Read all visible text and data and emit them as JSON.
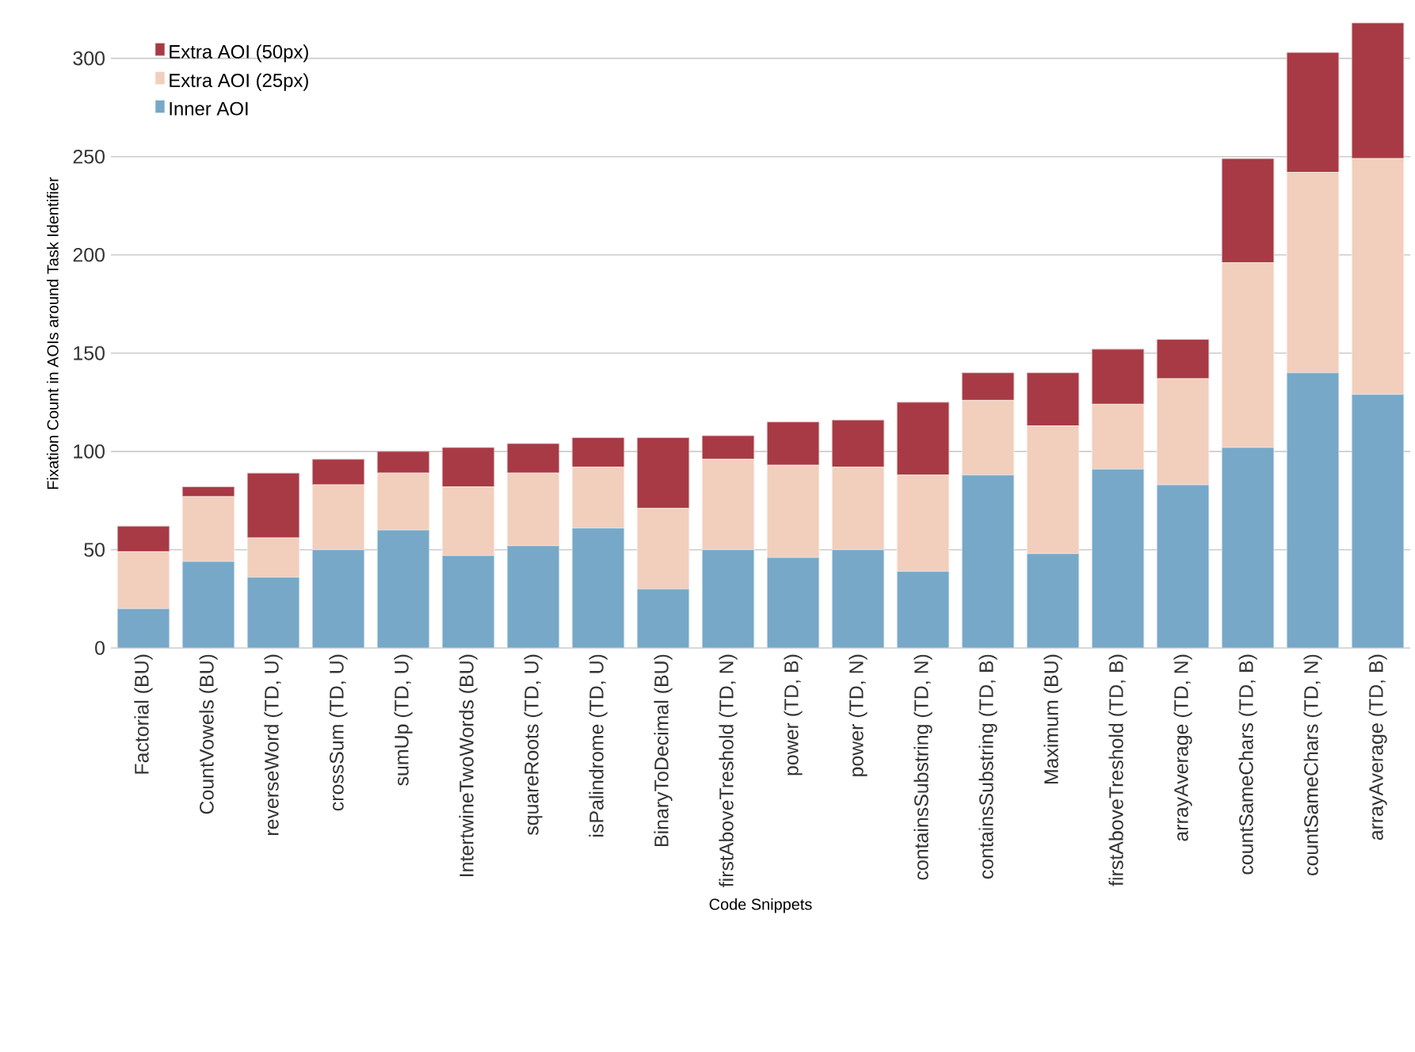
{
  "chart_data": {
    "type": "bar",
    "stacked": true,
    "xlabel": "Code Snippets",
    "ylabel": "Fixation Count in AOIs around Task Identifier",
    "categories": [
      "Factorial (BU)",
      "CountVowels (BU)",
      "reverseWord (TD, U)",
      "crossSum (TD, U)",
      "sumUp (TD, U)",
      "IntertwineTwoWords (BU)",
      "squareRoots (TD, U)",
      "isPalindrome (TD, U)",
      "BinaryToDecimal (BU)",
      "firstAboveTreshold (TD, N)",
      "power (TD, B)",
      "power (TD, N)",
      "containsSubstring (TD, N)",
      "containsSubstring (TD, B)",
      "Maximum (BU)",
      "firstAboveTreshold (TD, B)",
      "arrayAverage (TD, N)",
      "countSameChars (TD, B)",
      "countSameChars (TD, N)",
      "arrayAverage (TD, B)"
    ],
    "series": [
      {
        "name": "Inner AOI",
        "color": "#77a8c7",
        "values": [
          20,
          44,
          36,
          50,
          60,
          47,
          52,
          61,
          30,
          50,
          46,
          50,
          39,
          88,
          48,
          91,
          83,
          102,
          140,
          129
        ]
      },
      {
        "name": "Extra AOI (25px)",
        "color": "#f2cebc",
        "values": [
          29,
          33,
          20,
          33,
          29,
          35,
          37,
          31,
          41,
          46,
          47,
          42,
          49,
          38,
          65,
          33,
          54,
          94,
          102,
          120
        ]
      },
      {
        "name": "Extra AOI (50px)",
        "color": "#a73a45",
        "values": [
          13,
          5,
          33,
          13,
          11,
          20,
          15,
          15,
          36,
          12,
          22,
          24,
          37,
          14,
          27,
          28,
          20,
          53,
          61,
          69
        ]
      }
    ],
    "ylim": [
      0,
      320
    ],
    "yticks": [
      0,
      50,
      100,
      150,
      200,
      250,
      300
    ],
    "grid": "y",
    "legend": "top left"
  }
}
